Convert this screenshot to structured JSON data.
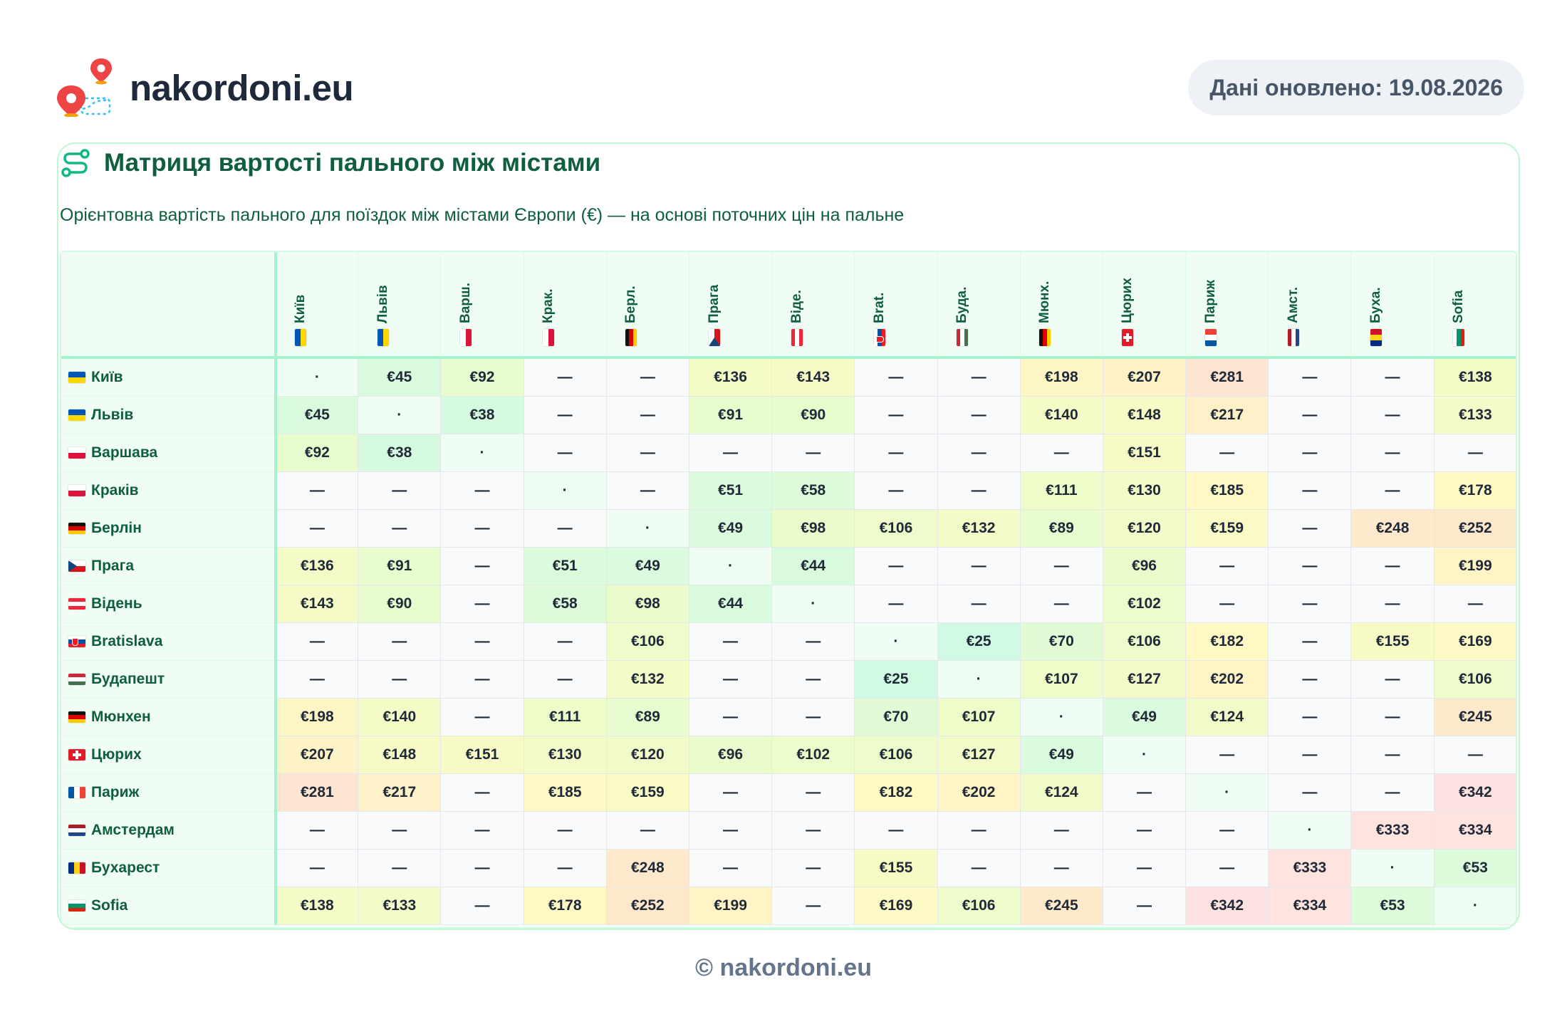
{
  "header": {
    "site_name": "nakordoni.eu",
    "updated_label": "Дані оновлено: 19.08.2026"
  },
  "card": {
    "title": "Матриця вартості пального між містами",
    "subtitle": "Орієнтовна вартість пального для поїздок між містами Європи (€) — на основі поточних цін на пальне"
  },
  "icons": {
    "logo": "map-pin-route-icon",
    "title": "route-icon"
  },
  "colors": {
    "accent": "#0f5e3e",
    "border": "#bbf7d0",
    "cheap": "#dcfce7",
    "mid": "#fef9c3",
    "expensive": "#fee2e2"
  },
  "columns": [
    {
      "label": "Київ",
      "flag": "ua"
    },
    {
      "label": "Львів",
      "flag": "ua"
    },
    {
      "label": "Варш.",
      "flag": "pl"
    },
    {
      "label": "Крак.",
      "flag": "pl"
    },
    {
      "label": "Берл.",
      "flag": "de"
    },
    {
      "label": "Прага",
      "flag": "cz"
    },
    {
      "label": "Віде.",
      "flag": "at"
    },
    {
      "label": "Brat.",
      "flag": "sk"
    },
    {
      "label": "Буда.",
      "flag": "hu"
    },
    {
      "label": "Мюнх.",
      "flag": "de"
    },
    {
      "label": "Цюрих",
      "flag": "ch"
    },
    {
      "label": "Париж",
      "flag": "fr"
    },
    {
      "label": "Амст.",
      "flag": "nl"
    },
    {
      "label": "Буха.",
      "flag": "ro"
    },
    {
      "label": "Sofia",
      "flag": "bg"
    }
  ],
  "rows": [
    {
      "label": "Київ",
      "flag": "ua",
      "cells": [
        "·",
        "€45",
        "€92",
        "—",
        "—",
        "€136",
        "€143",
        "—",
        "—",
        "€198",
        "€207",
        "€281",
        "—",
        "—",
        "€138"
      ]
    },
    {
      "label": "Львів",
      "flag": "ua",
      "cells": [
        "€45",
        "·",
        "€38",
        "—",
        "—",
        "€91",
        "€90",
        "—",
        "—",
        "€140",
        "€148",
        "€217",
        "—",
        "—",
        "€133"
      ]
    },
    {
      "label": "Варшава",
      "flag": "pl",
      "cells": [
        "€92",
        "€38",
        "·",
        "—",
        "—",
        "—",
        "—",
        "—",
        "—",
        "—",
        "€151",
        "—",
        "—",
        "—",
        "—"
      ]
    },
    {
      "label": "Краків",
      "flag": "pl",
      "cells": [
        "—",
        "—",
        "—",
        "·",
        "—",
        "€51",
        "€58",
        "—",
        "—",
        "€111",
        "€130",
        "€185",
        "—",
        "—",
        "€178"
      ]
    },
    {
      "label": "Берлін",
      "flag": "de",
      "cells": [
        "—",
        "—",
        "—",
        "—",
        "·",
        "€49",
        "€98",
        "€106",
        "€132",
        "€89",
        "€120",
        "€159",
        "—",
        "€248",
        "€252"
      ]
    },
    {
      "label": "Прага",
      "flag": "cz",
      "cells": [
        "€136",
        "€91",
        "—",
        "€51",
        "€49",
        "·",
        "€44",
        "—",
        "—",
        "—",
        "€96",
        "—",
        "—",
        "—",
        "€199"
      ]
    },
    {
      "label": "Відень",
      "flag": "at",
      "cells": [
        "€143",
        "€90",
        "—",
        "€58",
        "€98",
        "€44",
        "·",
        "—",
        "—",
        "—",
        "€102",
        "—",
        "—",
        "—",
        "—"
      ]
    },
    {
      "label": "Bratislava",
      "flag": "sk",
      "cells": [
        "—",
        "—",
        "—",
        "—",
        "€106",
        "—",
        "—",
        "·",
        "€25",
        "€70",
        "€106",
        "€182",
        "—",
        "€155",
        "€169"
      ]
    },
    {
      "label": "Будапешт",
      "flag": "hu",
      "cells": [
        "—",
        "—",
        "—",
        "—",
        "€132",
        "—",
        "—",
        "€25",
        "·",
        "€107",
        "€127",
        "€202",
        "—",
        "—",
        "€106"
      ]
    },
    {
      "label": "Мюнхен",
      "flag": "de",
      "cells": [
        "€198",
        "€140",
        "—",
        "€111",
        "€89",
        "—",
        "—",
        "€70",
        "€107",
        "·",
        "€49",
        "€124",
        "—",
        "—",
        "€245"
      ]
    },
    {
      "label": "Цюрих",
      "flag": "ch",
      "cells": [
        "€207",
        "€148",
        "€151",
        "€130",
        "€120",
        "€96",
        "€102",
        "€106",
        "€127",
        "€49",
        "·",
        "—",
        "—",
        "—",
        "—"
      ]
    },
    {
      "label": "Париж",
      "flag": "fr",
      "cells": [
        "€281",
        "€217",
        "—",
        "€185",
        "€159",
        "—",
        "—",
        "€182",
        "€202",
        "€124",
        "—",
        "·",
        "—",
        "—",
        "€342"
      ]
    },
    {
      "label": "Амстердам",
      "flag": "nl",
      "cells": [
        "—",
        "—",
        "—",
        "—",
        "—",
        "—",
        "—",
        "—",
        "—",
        "—",
        "—",
        "—",
        "·",
        "€333",
        "€334"
      ]
    },
    {
      "label": "Бухарест",
      "flag": "ro",
      "cells": [
        "—",
        "—",
        "—",
        "—",
        "€248",
        "—",
        "—",
        "€155",
        "—",
        "—",
        "—",
        "—",
        "€333",
        "·",
        "€53"
      ]
    },
    {
      "label": "Sofia",
      "flag": "bg",
      "cells": [
        "€138",
        "€133",
        "—",
        "€178",
        "€252",
        "€199",
        "—",
        "€169",
        "€106",
        "€245",
        "—",
        "€342",
        "€334",
        "€53",
        "·"
      ]
    }
  ],
  "footer": {
    "text": "© nakordoni.eu"
  }
}
